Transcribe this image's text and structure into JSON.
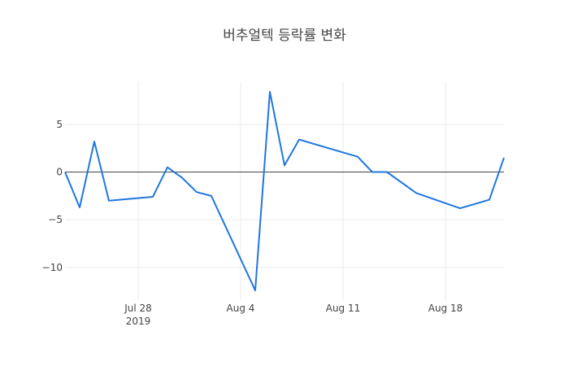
{
  "chart_data": {
    "type": "line",
    "title": "버추얼텍 등락률 변화",
    "xlabel": "",
    "ylabel": "",
    "grid": true,
    "legend": "none",
    "xlim": [
      "2019-07-23",
      "2019-08-22"
    ],
    "ylim": [
      -13.5,
      9.5
    ],
    "x_ticks": [
      {
        "date": "2019-07-28",
        "label": "Jul 28",
        "sublabel": "2019"
      },
      {
        "date": "2019-08-04",
        "label": "Aug 4"
      },
      {
        "date": "2019-08-11",
        "label": "Aug 11"
      },
      {
        "date": "2019-08-18",
        "label": "Aug 18"
      }
    ],
    "y_ticks": [
      5,
      0,
      -5,
      -10
    ],
    "y_tick_labels": [
      "5",
      "0",
      "−5",
      "−10"
    ],
    "series": [
      {
        "color": "#1f77e0",
        "x": [
          "2019-07-23",
          "2019-07-24",
          "2019-07-25",
          "2019-07-26",
          "2019-07-29",
          "2019-07-30",
          "2019-07-31",
          "2019-08-01",
          "2019-08-02",
          "2019-08-05",
          "2019-08-06",
          "2019-08-07",
          "2019-08-08",
          "2019-08-12",
          "2019-08-13",
          "2019-08-14",
          "2019-08-16",
          "2019-08-19",
          "2019-08-21",
          "2019-08-22"
        ],
        "y": [
          0,
          -3.7,
          3.2,
          -3.0,
          -2.6,
          0.5,
          -0.6,
          -2.1,
          -2.5,
          -12.4,
          8.4,
          0.7,
          3.4,
          1.6,
          0.0,
          0.0,
          -2.2,
          -3.8,
          -2.9,
          1.5
        ]
      }
    ]
  }
}
